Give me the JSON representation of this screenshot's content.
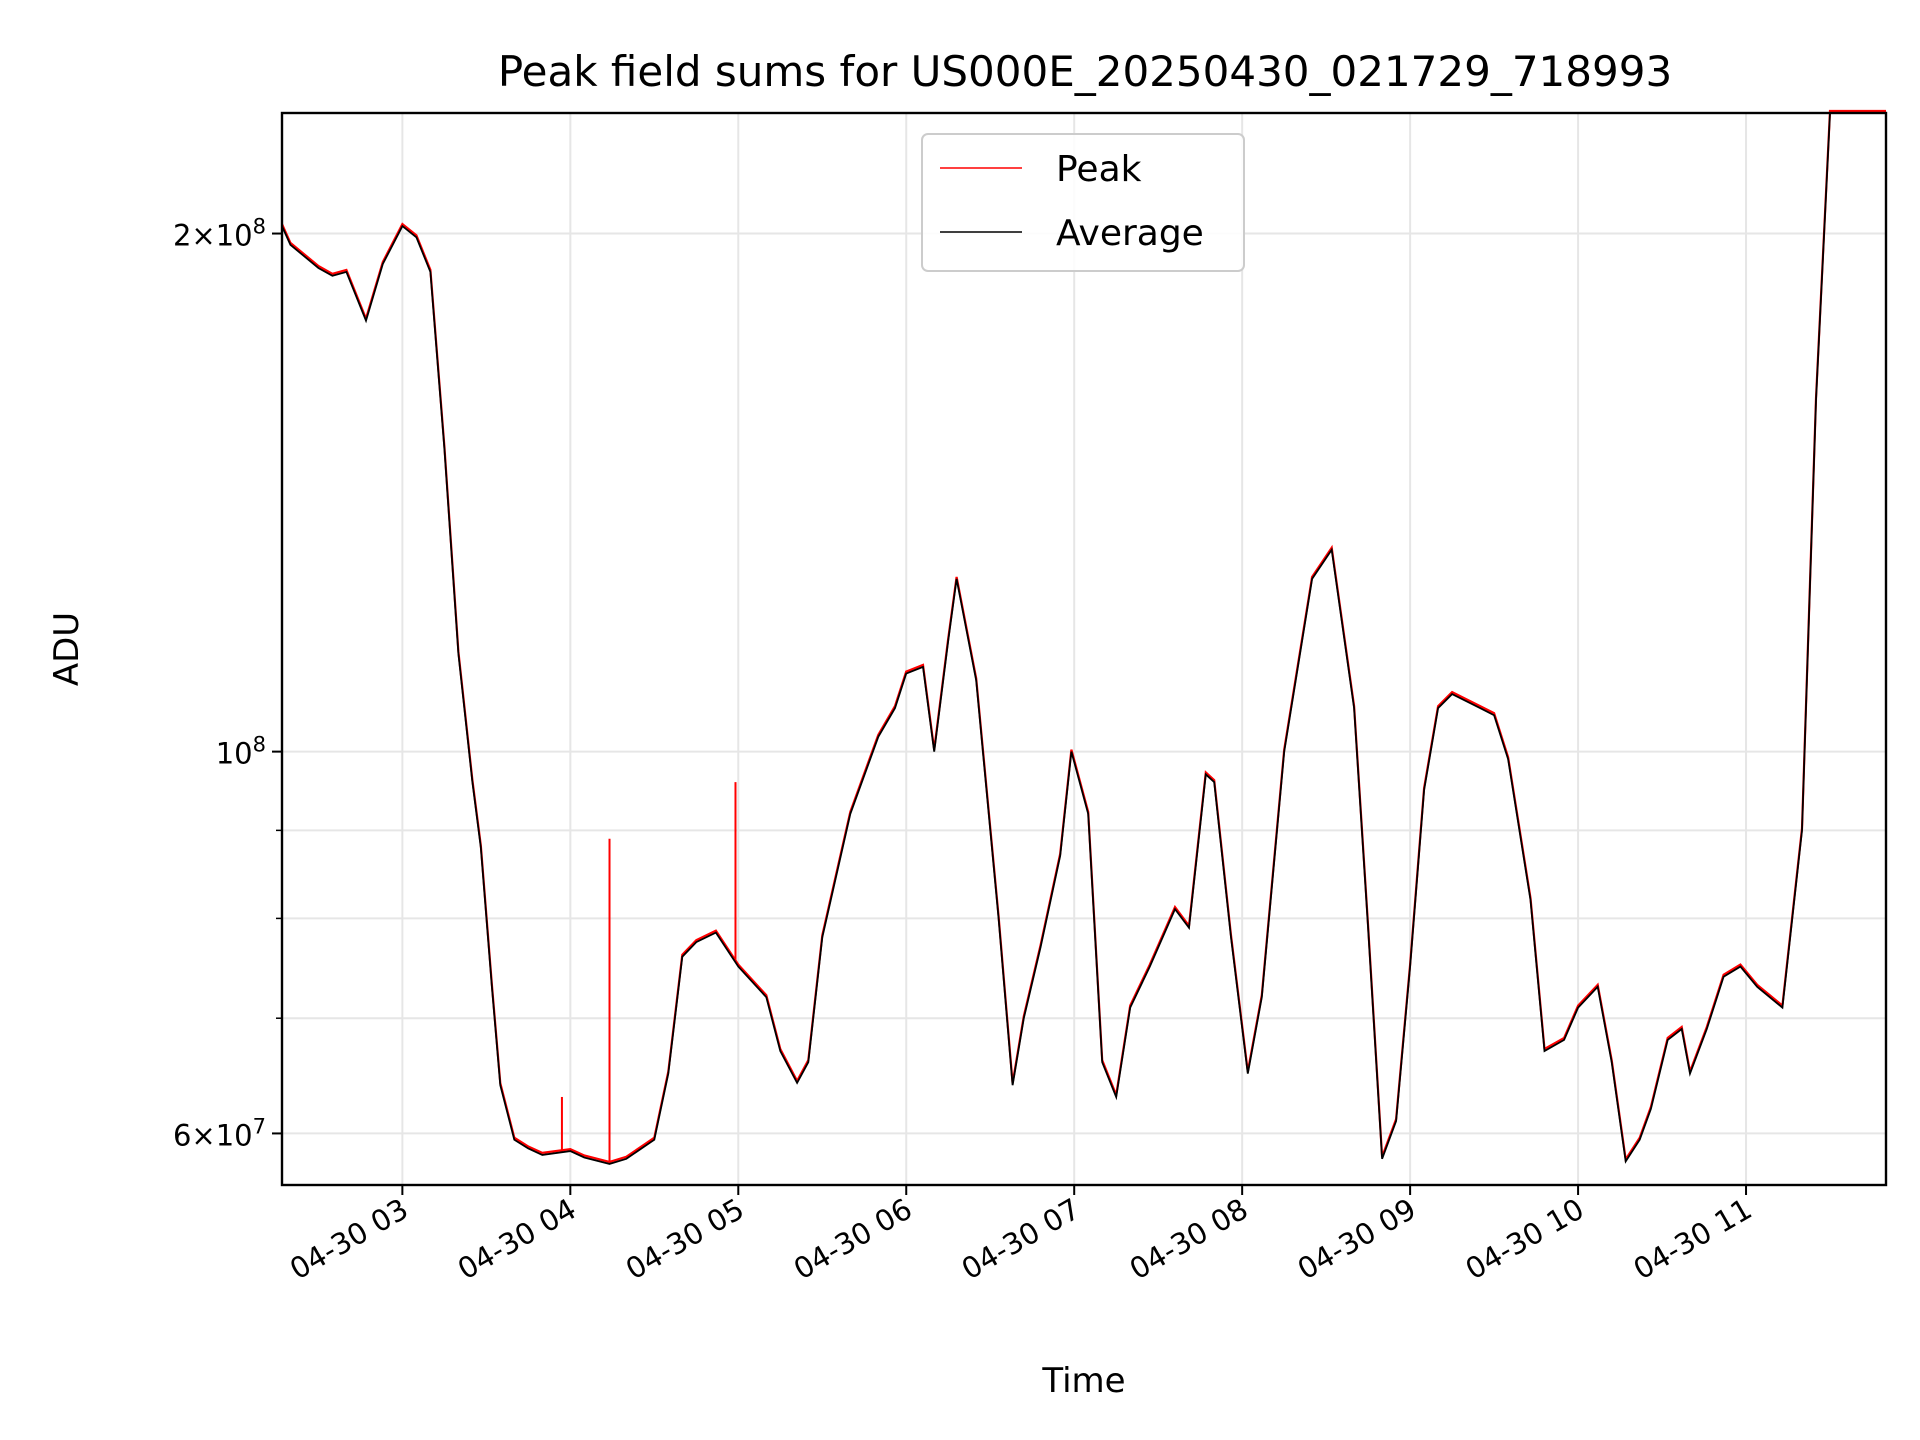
{
  "chart_data": {
    "type": "line",
    "title": "Peak field sums for US000E_20250430_021729_718993",
    "xlabel": "Time",
    "ylabel": "ADU",
    "y_scale": "log",
    "ylim": [
      56000000,
      235000000
    ],
    "xlim": [
      "2025-04-30 02:17",
      "2025-04-30 11:50"
    ],
    "grid": true,
    "legend_position": "upper center",
    "x_tick_labels": [
      "04-30 03",
      "04-30 04",
      "04-30 05",
      "04-30 06",
      "04-30 07",
      "04-30 08",
      "04-30 09",
      "04-30 10",
      "04-30 11"
    ],
    "x_ticks": [
      "2025-04-30 03:00",
      "2025-04-30 04:00",
      "2025-04-30 05:00",
      "2025-04-30 06:00",
      "2025-04-30 07:00",
      "2025-04-30 08:00",
      "2025-04-30 09:00",
      "2025-04-30 10:00",
      "2025-04-30 11:00"
    ],
    "y_major_ticks": [
      {
        "value": 60000000,
        "label_mantissa": "6",
        "label_exp": "7"
      },
      {
        "value": 100000000,
        "label_mantissa": "",
        "label_exp": "8"
      },
      {
        "value": 200000000,
        "label_mantissa": "2",
        "label_exp": "8"
      }
    ],
    "y_minor_ticks": [
      70000000,
      80000000,
      90000000
    ],
    "series": [
      {
        "name": "Peak",
        "color": "#ff0000",
        "spikes": [
          {
            "x": "2025-04-30 03:57",
            "y": 63000000
          },
          {
            "x": "2025-04-30 04:14",
            "y": 89000000
          },
          {
            "x": "2025-04-30 04:59",
            "y": 96000000
          }
        ]
      },
      {
        "name": "Average",
        "color": "#000000",
        "x": [
          "2025-04-30 02:17",
          "2025-04-30 02:20",
          "2025-04-30 02:30",
          "2025-04-30 02:35",
          "2025-04-30 02:40",
          "2025-04-30 02:47",
          "2025-04-30 02:53",
          "2025-04-30 03:00",
          "2025-04-30 03:05",
          "2025-04-30 03:10",
          "2025-04-30 03:15",
          "2025-04-30 03:20",
          "2025-04-30 03:25",
          "2025-04-30 03:28",
          "2025-04-30 03:32",
          "2025-04-30 03:35",
          "2025-04-30 03:40",
          "2025-04-30 03:45",
          "2025-04-30 03:50",
          "2025-04-30 04:00",
          "2025-04-30 04:05",
          "2025-04-30 04:14",
          "2025-04-30 04:20",
          "2025-04-30 04:30",
          "2025-04-30 04:35",
          "2025-04-30 04:40",
          "2025-04-30 04:45",
          "2025-04-30 04:52",
          "2025-04-30 05:00",
          "2025-04-30 05:10",
          "2025-04-30 05:15",
          "2025-04-30 05:21",
          "2025-04-30 05:25",
          "2025-04-30 05:30",
          "2025-04-30 05:40",
          "2025-04-30 05:50",
          "2025-04-30 05:56",
          "2025-04-30 06:00",
          "2025-04-30 06:06",
          "2025-04-30 06:10",
          "2025-04-30 06:15",
          "2025-04-30 06:18",
          "2025-04-30 06:25",
          "2025-04-30 06:33",
          "2025-04-30 06:38",
          "2025-04-30 06:42",
          "2025-04-30 06:48",
          "2025-04-30 06:55",
          "2025-04-30 06:59",
          "2025-04-30 07:05",
          "2025-04-30 07:10",
          "2025-04-30 07:15",
          "2025-04-30 07:20",
          "2025-04-30 07:27",
          "2025-04-30 07:36",
          "2025-04-30 07:41",
          "2025-04-30 07:47",
          "2025-04-30 07:50",
          "2025-04-30 07:56",
          "2025-04-30 08:02",
          "2025-04-30 08:07",
          "2025-04-30 08:15",
          "2025-04-30 08:25",
          "2025-04-30 08:32",
          "2025-04-30 08:40",
          "2025-04-30 08:45",
          "2025-04-30 08:50",
          "2025-04-30 08:55",
          "2025-04-30 09:00",
          "2025-04-30 09:05",
          "2025-04-30 09:10",
          "2025-04-30 09:15",
          "2025-04-30 09:25",
          "2025-04-30 09:30",
          "2025-04-30 09:35",
          "2025-04-30 09:43",
          "2025-04-30 09:48",
          "2025-04-30 09:55",
          "2025-04-30 10:00",
          "2025-04-30 10:07",
          "2025-04-30 10:12",
          "2025-04-30 10:17",
          "2025-04-30 10:22",
          "2025-04-30 10:26",
          "2025-04-30 10:32",
          "2025-04-30 10:37",
          "2025-04-30 10:40",
          "2025-04-30 10:46",
          "2025-04-30 10:52",
          "2025-04-30 10:58",
          "2025-04-30 11:04",
          "2025-04-30 11:13",
          "2025-04-30 11:20",
          "2025-04-30 11:25",
          "2025-04-30 11:30",
          "2025-04-30 11:35",
          "2025-04-30 11:40",
          "2025-04-30 11:45",
          "2025-04-30 11:50"
        ],
        "values": [
          202000000,
          197000000,
          191000000,
          189000000,
          190000000,
          178000000,
          192000000,
          202000000,
          199000000,
          190000000,
          150000000,
          114000000,
          96000000,
          88000000,
          73000000,
          64000000,
          59500000,
          58800000,
          58300000,
          58600000,
          58100000,
          57600000,
          58000000,
          59500000,
          65000000,
          76000000,
          77500000,
          78500000,
          75000000,
          72000000,
          67000000,
          64200000,
          66000000,
          78000000,
          92000000,
          102000000,
          106000000,
          111000000,
          112000000,
          100000000,
          116000000,
          126000000,
          110000000,
          80000000,
          64000000,
          70000000,
          77000000,
          87000000,
          100000000,
          92000000,
          66000000,
          63000000,
          71000000,
          75000000,
          81000000,
          79000000,
          97000000,
          96000000,
          78000000,
          65000000,
          72000000,
          100000000,
          126000000,
          131000000,
          106000000,
          79000000,
          58000000,
          61000000,
          75000000,
          95000000,
          106000000,
          108000000,
          106000000,
          105000000,
          99000000,
          82000000,
          67000000,
          68000000,
          71000000,
          73000000,
          66000000,
          57800000,
          59500000,
          62000000,
          68000000,
          69000000,
          65000000,
          69000000,
          74000000,
          75000000,
          73000000,
          71000000,
          90000000,
          160000000,
          235000000,
          235000000,
          235000000,
          235000000,
          235000000
        ]
      }
    ]
  }
}
